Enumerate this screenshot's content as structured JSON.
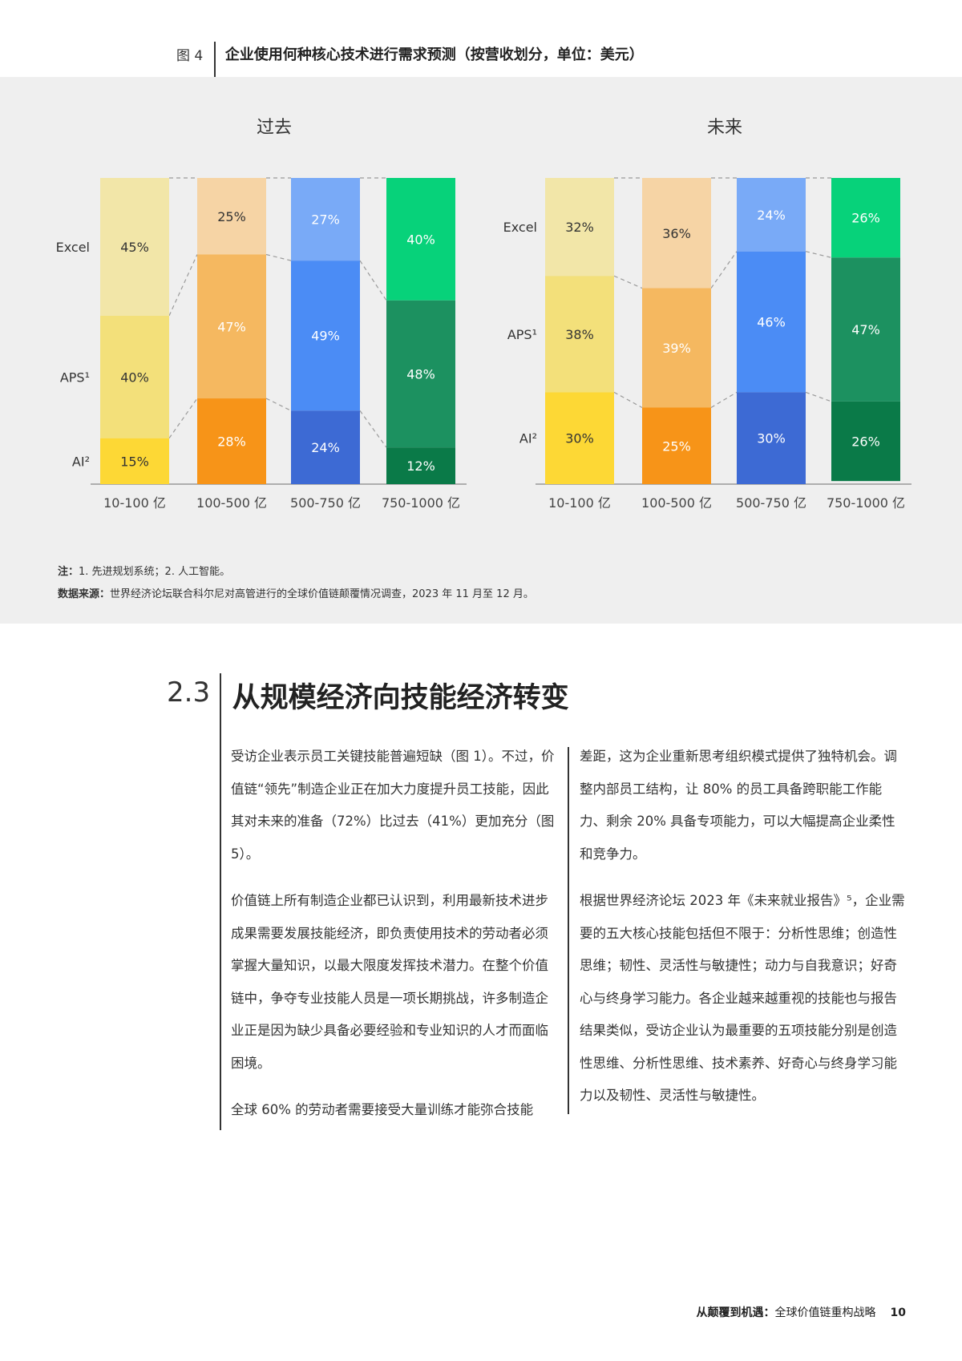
{
  "figure": {
    "number": "图 4",
    "title": "企业使用何种核心技术进行需求预测（按营收划分，单位：美元）"
  },
  "chart_data": {
    "type": "bar",
    "stacked": true,
    "normalized_percent": true,
    "category_labels": [
      "10-100 亿",
      "100-500 亿",
      "500-750 亿",
      "750-1000 亿"
    ],
    "layers": [
      "AI²",
      "APS¹",
      "Excel"
    ],
    "charts": [
      {
        "title": "过去",
        "row_labels": {
          "Excel": "Excel",
          "APS": "APS¹",
          "AI": "AI²"
        },
        "bars": [
          {
            "category": "10-100 亿",
            "AI": 15,
            "APS": 40,
            "Excel": 45,
            "colors": {
              "AI": "#fdd835",
              "APS": "#f3e07a",
              "Excel": "#f2e6a8"
            }
          },
          {
            "category": "100-500 亿",
            "AI": 28,
            "APS": 47,
            "Excel": 25,
            "colors": {
              "AI": "#f79418",
              "APS": "#f5b860",
              "Excel": "#f6d4a5"
            }
          },
          {
            "category": "500-750 亿",
            "AI": 24,
            "APS": 49,
            "Excel": 27,
            "colors": {
              "AI": "#3d6ad4",
              "APS": "#4b8cf5",
              "Excel": "#79aaf7"
            }
          },
          {
            "category": "750-1000 亿",
            "AI": 12,
            "APS": 48,
            "Excel": 40,
            "colors": {
              "AI": "#0a7a48",
              "APS": "#1c9160",
              "Excel": "#07d27a"
            }
          }
        ]
      },
      {
        "title": "未来",
        "row_labels": {
          "Excel": "Excel",
          "APS": "APS¹",
          "AI": "AI²"
        },
        "bars": [
          {
            "category": "10-100 亿",
            "AI": 30,
            "APS": 38,
            "Excel": 32,
            "colors": {
              "AI": "#fdd835",
              "APS": "#f3e07a",
              "Excel": "#f2e6a8"
            }
          },
          {
            "category": "100-500 亿",
            "AI": 25,
            "APS": 39,
            "Excel": 36,
            "colors": {
              "AI": "#f79418",
              "APS": "#f5b860",
              "Excel": "#f6d4a5"
            }
          },
          {
            "category": "500-750 亿",
            "AI": 30,
            "APS": 46,
            "Excel": 24,
            "colors": {
              "AI": "#3d6ad4",
              "APS": "#4b8cf5",
              "Excel": "#79aaf7"
            }
          },
          {
            "category": "750-1000 亿",
            "AI": 26,
            "APS": 47,
            "Excel": 26,
            "colors": {
              "AI": "#0a7a48",
              "APS": "#1c9160",
              "Excel": "#07d27a"
            }
          }
        ]
      }
    ]
  },
  "notes": {
    "note_label": "注：",
    "note_text": "1. 先进规划系统；2. 人工智能。",
    "source_label": "数据来源：",
    "source_text": "世界经济论坛联合科尔尼对高管进行的全球价值链颠覆情况调查，2023 年 11 月至 12 月。"
  },
  "section": {
    "number": "2.3",
    "title": "从规模经济向技能经济转变"
  },
  "body": {
    "left_paragraphs": [
      "受访企业表示员工关键技能普遍短缺（图 1）。不过，价值链“领先”制造企业正在加大力度提升员工技能，因此其对未来的准备（72%）比过去（41%）更加充分（图 5）。",
      "价值链上所有制造企业都已认识到，利用最新技术进步成果需要发展技能经济，即负责使用技术的劳动者必须掌握大量知识，以最大限度发挥技术潜力。在整个价值链中，争夺专业技能人员是一项长期挑战，许多制造企业正是因为缺少具备必要经验和专业知识的人才而面临困境。",
      "全球 60% 的劳动者需要接受大量训练才能弥合技能"
    ],
    "right_paragraphs": [
      "差距，这为企业重新思考组织模式提供了独特机会。调整内部员工结构，让 80% 的员工具备跨职能工作能力、剩余 20% 具备专项能力，可以大幅提高企业柔性和竞争力。",
      "根据世界经济论坛 2023 年《未来就业报告》⁵，企业需要的五大核心技能包括但不限于：分析性思维；创造性思维；韧性、灵活性与敏捷性；动力与自我意识；好奇心与终身学习能力。各企业越来越重视的技能也与报告结果类似，受访企业认为最重要的五项技能分别是创造性思维、分析性思维、技术素养、好奇心与终身学习能力以及韧性、灵活性与敏捷性。"
    ]
  },
  "footer": {
    "title": "从颠覆到机遇：",
    "subtitle": "全球价值链重构战略",
    "page": "10"
  }
}
